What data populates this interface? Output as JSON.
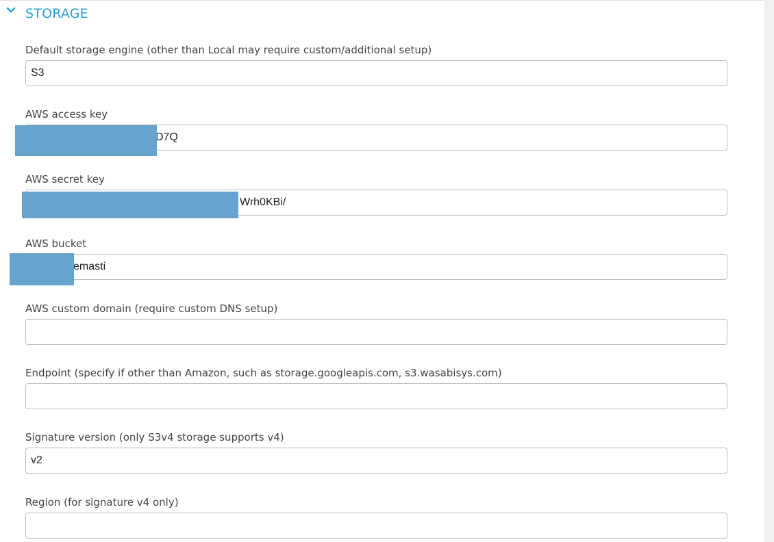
{
  "section": {
    "title": "STORAGE",
    "icon": "chevron-down-icon",
    "accent_color": "#2a9fd6"
  },
  "fields": {
    "storage_engine": {
      "label": "Default storage engine (other than Local may require custom/additional setup)",
      "value": "S3"
    },
    "access_key": {
      "label": "AWS access key",
      "value": "D7Q"
    },
    "secret_key": {
      "label": "AWS secret key",
      "value": "Wrh0KBi/"
    },
    "bucket": {
      "label": "AWS bucket",
      "value": "emasti"
    },
    "custom_domain": {
      "label": "AWS custom domain (require custom DNS setup)",
      "value": ""
    },
    "endpoint": {
      "label": "Endpoint (specify if other than Amazon, such as storage.googleapis.com, s3.wasabisys.com)",
      "value": ""
    },
    "signature_version": {
      "label": "Signature version (only S3v4 storage supports v4)",
      "value": "v2"
    },
    "region": {
      "label": "Region (for signature v4 only)",
      "value": ""
    }
  },
  "redaction_color": "#66a3cd"
}
